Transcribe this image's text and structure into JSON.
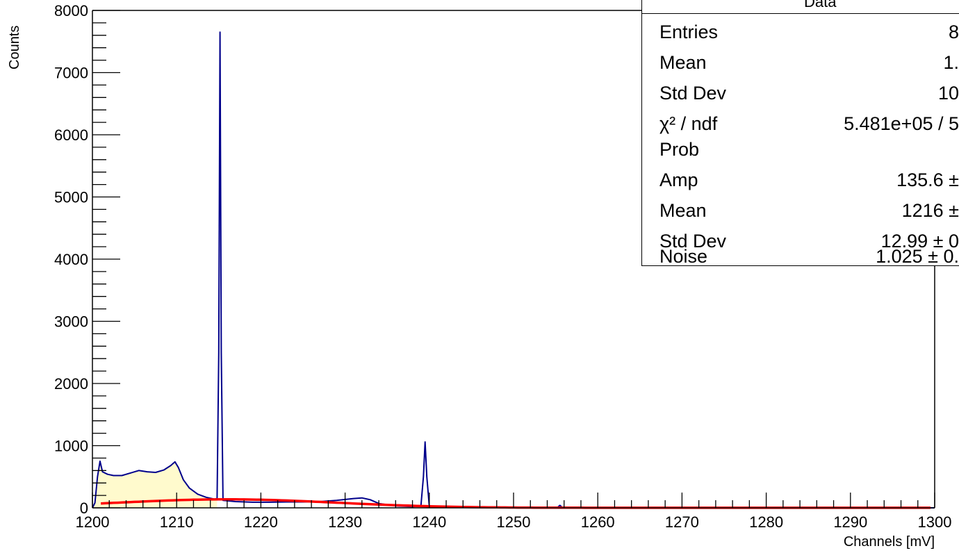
{
  "chart_data": {
    "type": "histogram",
    "title": "",
    "xlabel": "Channels [mV]",
    "ylabel": "Counts",
    "xlim": [
      1200,
      1300
    ],
    "ylim": [
      0,
      8000
    ],
    "x_ticks": [
      1200,
      1210,
      1220,
      1230,
      1240,
      1250,
      1260,
      1270,
      1280,
      1290,
      1300
    ],
    "y_ticks": [
      0,
      1000,
      2000,
      3000,
      4000,
      5000,
      6000,
      7000,
      8000
    ],
    "data_color": "#00008b",
    "fill_color": "#fffacd",
    "fit_color": "#ff0000",
    "data_series": {
      "name": "Data",
      "points": [
        [
          1200.0,
          0
        ],
        [
          1200.3,
          80
        ],
        [
          1200.6,
          500
        ],
        [
          1200.9,
          750
        ],
        [
          1201.2,
          580
        ],
        [
          1201.8,
          540
        ],
        [
          1202.5,
          520
        ],
        [
          1203.5,
          520
        ],
        [
          1204.5,
          560
        ],
        [
          1205.5,
          600
        ],
        [
          1206.5,
          580
        ],
        [
          1207.5,
          570
        ],
        [
          1208.5,
          610
        ],
        [
          1209.3,
          680
        ],
        [
          1209.8,
          740
        ],
        [
          1210.2,
          650
        ],
        [
          1210.8,
          450
        ],
        [
          1211.5,
          320
        ],
        [
          1212.5,
          220
        ],
        [
          1213.5,
          170
        ],
        [
          1214.5,
          140
        ],
        [
          1214.8,
          150
        ],
        [
          1215.0,
          2500
        ],
        [
          1215.15,
          7650
        ],
        [
          1215.3,
          2500
        ],
        [
          1215.5,
          120
        ],
        [
          1217,
          100
        ],
        [
          1219,
          90
        ],
        [
          1221,
          90
        ],
        [
          1223,
          95
        ],
        [
          1225,
          95
        ],
        [
          1227,
          100
        ],
        [
          1229,
          120
        ],
        [
          1231,
          150
        ],
        [
          1232,
          160
        ],
        [
          1233,
          130
        ],
        [
          1234,
          70
        ],
        [
          1236,
          30
        ],
        [
          1238,
          20
        ],
        [
          1239.0,
          30
        ],
        [
          1239.3,
          500
        ],
        [
          1239.5,
          1060
        ],
        [
          1239.7,
          500
        ],
        [
          1240.0,
          20
        ],
        [
          1242,
          10
        ],
        [
          1245,
          5
        ],
        [
          1250,
          5
        ],
        [
          1255.2,
          5
        ],
        [
          1255.5,
          40
        ],
        [
          1255.8,
          5
        ],
        [
          1260,
          2
        ],
        [
          1270,
          1
        ],
        [
          1280,
          0
        ],
        [
          1290,
          0
        ],
        [
          1300,
          0
        ]
      ]
    },
    "fit_function": {
      "type": "gaussian_plus_noise",
      "amp": 135.6,
      "mean": 1216,
      "sigma": 12.99,
      "noise": 1.025
    }
  },
  "stats_box": {
    "title": "Data",
    "rows": [
      {
        "label": "Entries",
        "value": "8"
      },
      {
        "label": "Mean",
        "value": "1."
      },
      {
        "label": "Std Dev",
        "value": "10"
      },
      {
        "label": "χ² / ndf",
        "value": "5.481e+05 / 5"
      },
      {
        "label": "Prob",
        "value": ""
      },
      {
        "label": "Amp",
        "value": "135.6 ±"
      },
      {
        "label": "Mean",
        "value": "1216 ±"
      },
      {
        "label": "Std Dev",
        "value": "12.99 ± 0"
      },
      {
        "label": "Noise",
        "value": "1.025 ± 0."
      }
    ]
  }
}
